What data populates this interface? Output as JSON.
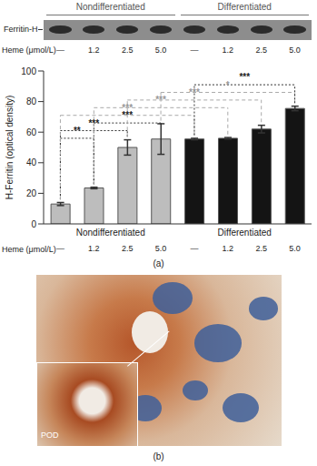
{
  "chart_data": {
    "type": "bar",
    "panel_label": "(a)",
    "blot_label": "Ferritin-H",
    "y_label": "H-Ferritin (optical density)",
    "x_label": "Heme (μmol/L)",
    "categories": [
      "—",
      "1.2",
      "2.5",
      "5.0",
      "—",
      "1.2",
      "2.5",
      "5.0"
    ],
    "groups": [
      {
        "label": "Nondifferentiated",
        "count": 4
      },
      {
        "label": "Differentiated",
        "count": 4
      }
    ],
    "values": [
      13,
      23.5,
      50,
      55.5,
      55.5,
      56,
      62,
      75.5
    ],
    "errors": [
      1,
      0.5,
      5,
      10,
      0.5,
      0.5,
      2.5,
      1.5
    ],
    "colors": [
      "#bdbdbd",
      "#bdbdbd",
      "#bdbdbd",
      "#bdbdbd",
      "#141414",
      "#141414",
      "#141414",
      "#141414"
    ],
    "ylim": [
      0,
      100
    ],
    "yticks": [
      0,
      20,
      40,
      60,
      80,
      100
    ],
    "grid": false,
    "comparisons": [
      {
        "from": 0,
        "to": 1,
        "label": "**"
      },
      {
        "from": 0,
        "to": 2,
        "label": "***"
      },
      {
        "from": 1,
        "to": 3,
        "label": "***"
      },
      {
        "from": 0,
        "to": 4,
        "label": "***"
      },
      {
        "from": 1,
        "to": 5,
        "label": "***"
      },
      {
        "from": 2,
        "to": 6,
        "label": "***"
      },
      {
        "from": 3,
        "to": 7,
        "label": "*"
      },
      {
        "from": 4,
        "to": 7,
        "label": "***"
      }
    ]
  },
  "panel_b": {
    "panel_label": "(b)",
    "annotation": "POD"
  }
}
